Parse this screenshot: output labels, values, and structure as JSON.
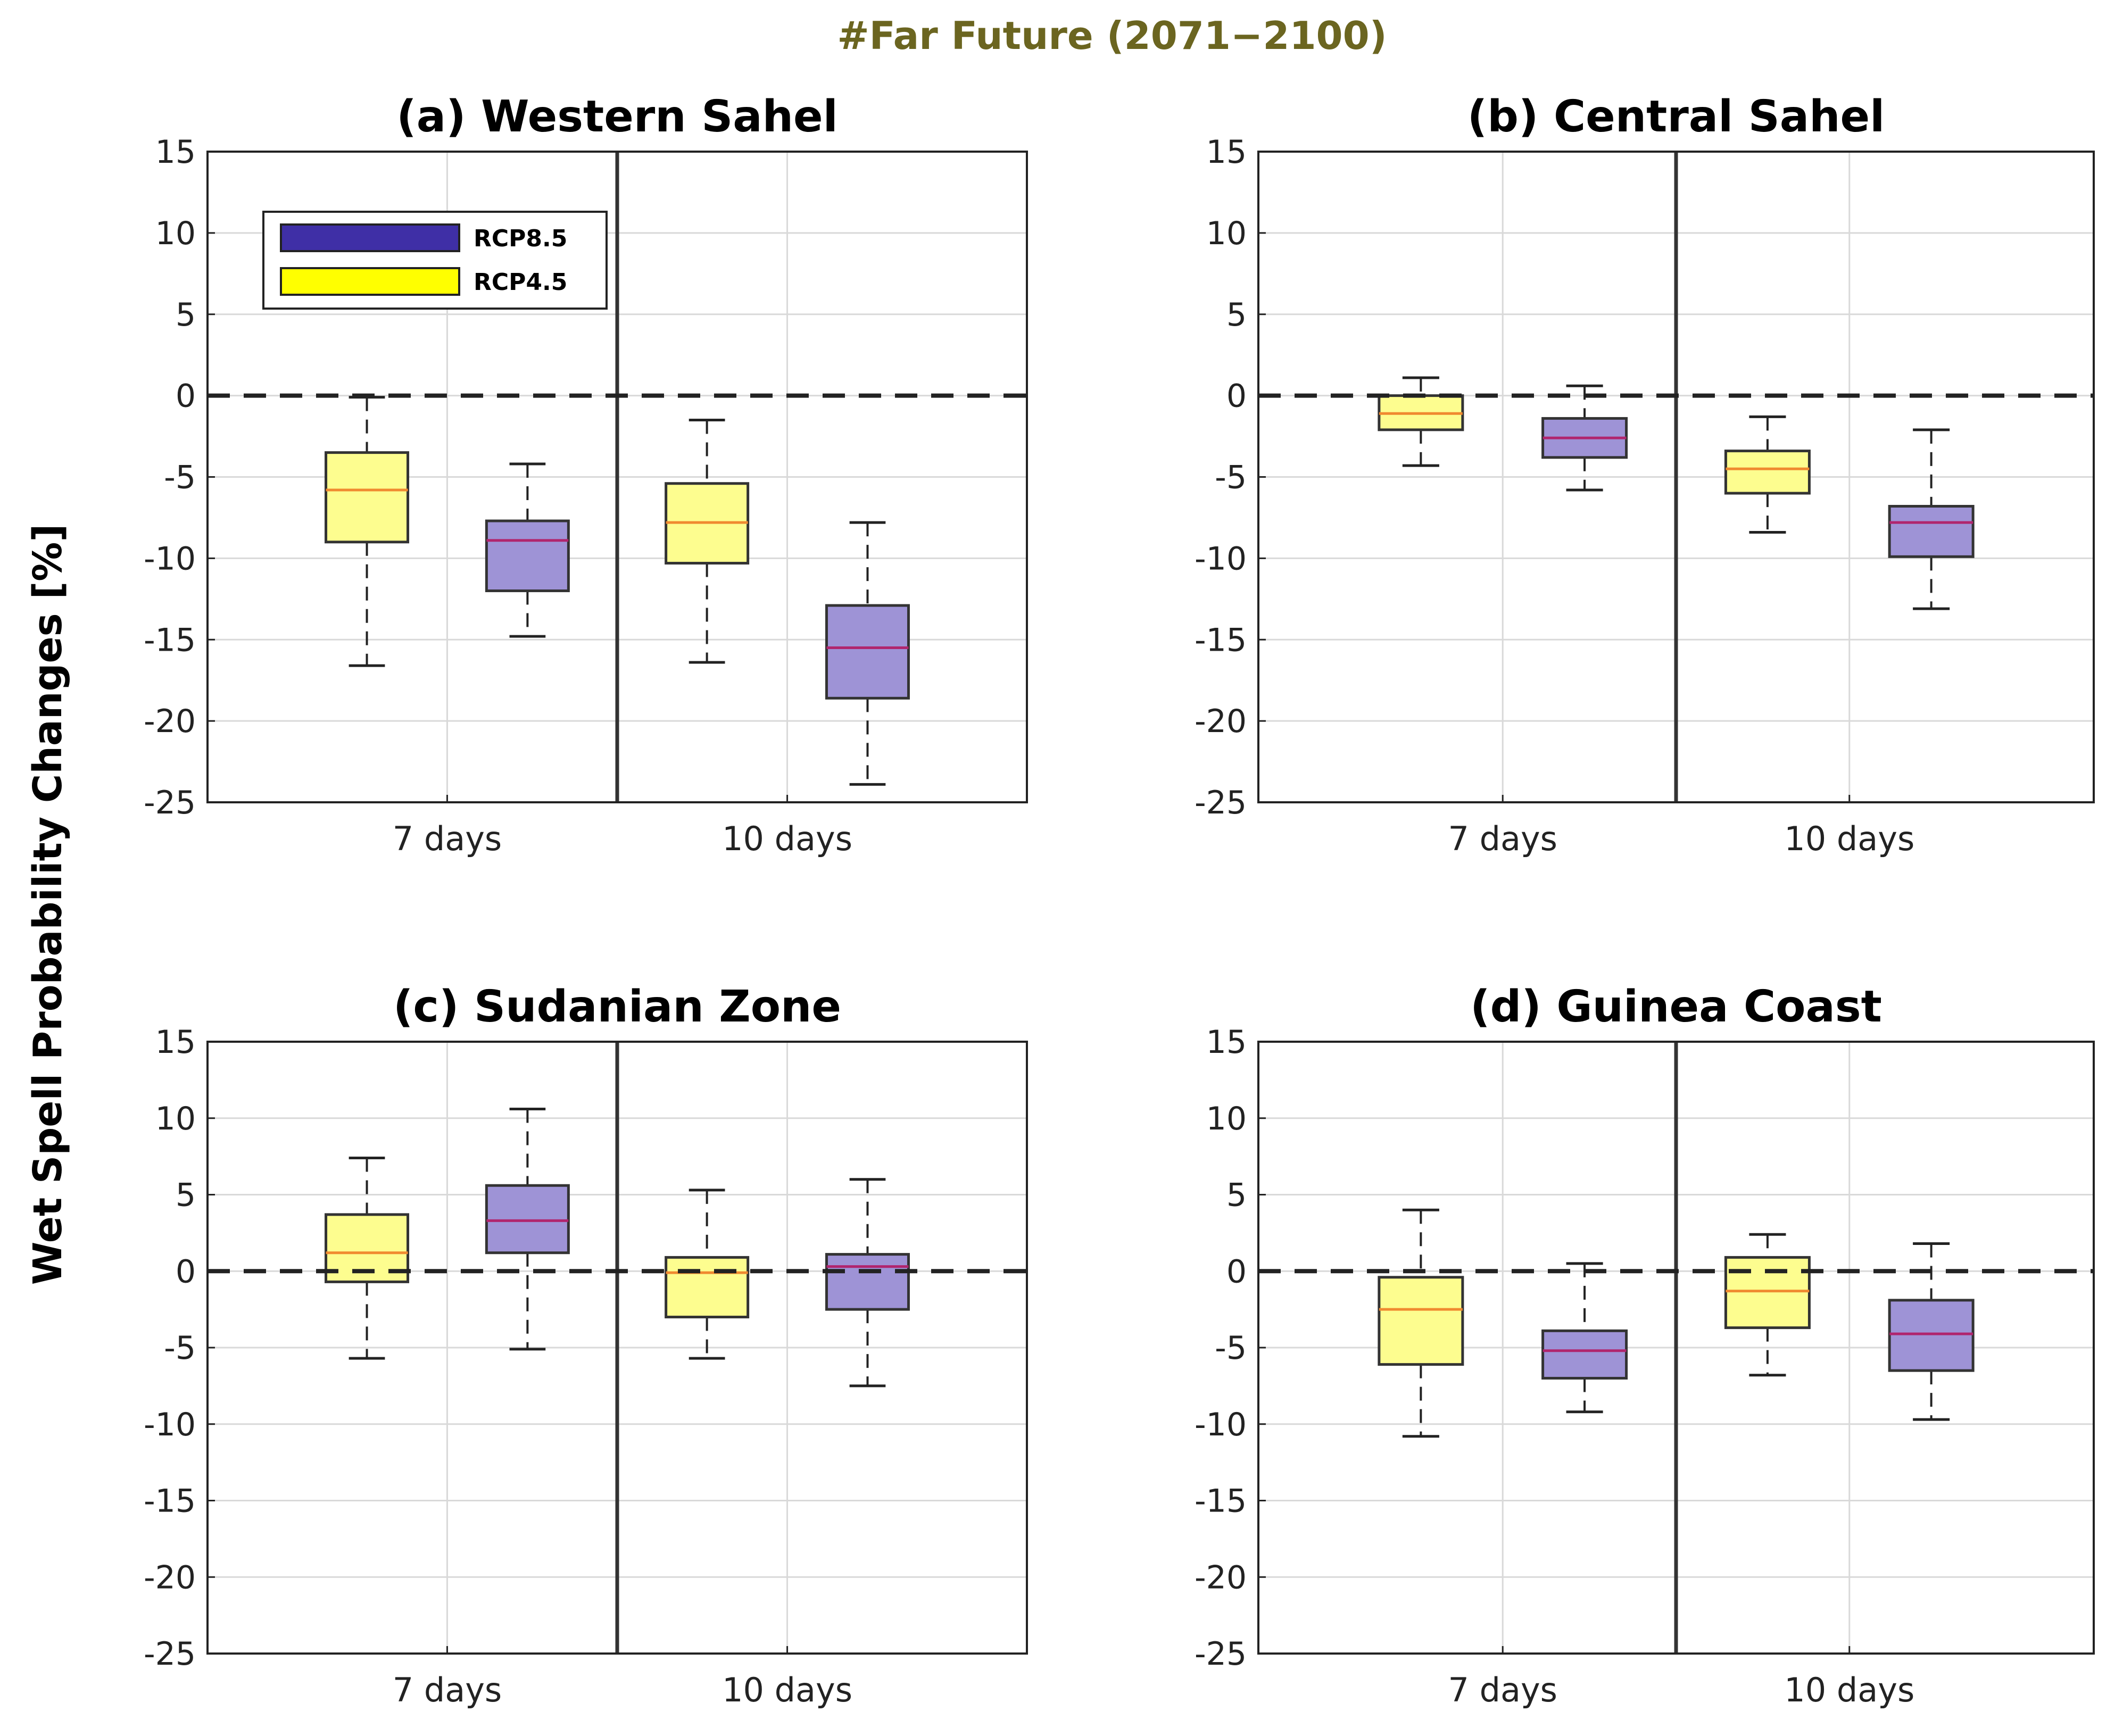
{
  "figure": {
    "title": "#Far Future (2071−2100)",
    "ylabel": "Wet Spell Probability Changes [%]"
  },
  "legend": [
    {
      "label": "RCP8.5",
      "color": "#3f2fa6"
    },
    {
      "label": "RCP4.5",
      "color": "#ffff00"
    }
  ],
  "styles": {
    "rcp45_fill": "#fdfd8f",
    "rcp85_fill": "#9e93d6",
    "rcp45_median": "#f08a30",
    "rcp85_median": "#b0256e",
    "grid": "#d9d9d9"
  },
  "chart_data": [
    {
      "type": "box",
      "title": "(a)  Western Sahel",
      "categories": [
        "7 days",
        "10 days"
      ],
      "ylim": [
        -25,
        15
      ],
      "yticks": [
        15,
        10,
        5,
        0,
        -5,
        -10,
        -15,
        -20,
        -25
      ],
      "ytick_labels": [
        "15",
        "10",
        "5",
        "0",
        "-5",
        "-10",
        "-15",
        "-20",
        "-25"
      ],
      "reference_line": 0,
      "series": [
        {
          "name": "RCP4.5",
          "boxes": [
            {
              "whisker_low": -16.6,
              "q1": -9.0,
              "median": -5.8,
              "q3": -3.5,
              "whisker_high": -0.1
            },
            {
              "whisker_low": -16.4,
              "q1": -10.3,
              "median": -7.8,
              "q3": -5.4,
              "whisker_high": -1.5
            }
          ]
        },
        {
          "name": "RCP8.5",
          "boxes": [
            {
              "whisker_low": -14.8,
              "q1": -12.0,
              "median": -8.9,
              "q3": -7.7,
              "whisker_high": -4.2
            },
            {
              "whisker_low": -23.9,
              "q1": -18.6,
              "median": -15.5,
              "q3": -12.9,
              "whisker_high": -7.8
            }
          ]
        }
      ]
    },
    {
      "type": "box",
      "title": "(b)  Central Sahel",
      "categories": [
        "7 days",
        "10 days"
      ],
      "ylim": [
        -25,
        15
      ],
      "yticks": [
        15,
        10,
        5,
        0,
        -5,
        -10,
        -15,
        -20,
        -25
      ],
      "ytick_labels": [
        "15",
        "10",
        "5",
        "0",
        "-5",
        "-10",
        "-15",
        "-20",
        "-25"
      ],
      "reference_line": 0,
      "series": [
        {
          "name": "RCP4.5",
          "boxes": [
            {
              "whisker_low": -4.3,
              "q1": -2.1,
              "median": -1.1,
              "q3": 0.0,
              "whisker_high": 1.1
            },
            {
              "whisker_low": -8.4,
              "q1": -6.0,
              "median": -4.5,
              "q3": -3.4,
              "whisker_high": -1.3
            }
          ]
        },
        {
          "name": "RCP8.5",
          "boxes": [
            {
              "whisker_low": -5.8,
              "q1": -3.8,
              "median": -2.6,
              "q3": -1.4,
              "whisker_high": 0.6
            },
            {
              "whisker_low": -13.1,
              "q1": -9.9,
              "median": -7.8,
              "q3": -6.8,
              "whisker_high": -2.1
            }
          ]
        }
      ]
    },
    {
      "type": "box",
      "title": "(c)  Sudanian Zone",
      "categories": [
        "7 days",
        "10 days"
      ],
      "ylim": [
        -25,
        15
      ],
      "yticks": [
        15,
        10,
        5,
        0,
        -5,
        -10,
        -15,
        -20,
        -25
      ],
      "ytick_labels": [
        "15",
        "10",
        "5",
        "0",
        "-5",
        "-10",
        "-15",
        "-20",
        "-25"
      ],
      "reference_line": 0,
      "series": [
        {
          "name": "RCP4.5",
          "boxes": [
            {
              "whisker_low": -5.7,
              "q1": -0.7,
              "median": 1.2,
              "q3": 3.7,
              "whisker_high": 7.4
            },
            {
              "whisker_low": -5.7,
              "q1": -3.0,
              "median": -0.1,
              "q3": 0.9,
              "whisker_high": 5.3
            }
          ]
        },
        {
          "name": "RCP8.5",
          "boxes": [
            {
              "whisker_low": -5.1,
              "q1": 1.2,
              "median": 3.3,
              "q3": 5.6,
              "whisker_high": 10.6
            },
            {
              "whisker_low": -7.5,
              "q1": -2.5,
              "median": 0.3,
              "q3": 1.1,
              "whisker_high": 6.0
            }
          ]
        }
      ]
    },
    {
      "type": "box",
      "title": "(d)  Guinea Coast",
      "categories": [
        "7 days",
        "10 days"
      ],
      "ylim": [
        -25,
        15
      ],
      "yticks": [
        15,
        10,
        5,
        0,
        -5,
        -10,
        -15,
        -20,
        -25
      ],
      "ytick_labels": [
        "15",
        "10",
        "5",
        "0",
        "-5",
        "-10",
        "-15",
        "-20",
        "-25"
      ],
      "reference_line": 0,
      "series": [
        {
          "name": "RCP4.5",
          "boxes": [
            {
              "whisker_low": -10.8,
              "q1": -6.1,
              "median": -2.5,
              "q3": -0.4,
              "whisker_high": 4.0
            },
            {
              "whisker_low": -6.8,
              "q1": -3.7,
              "median": -1.3,
              "q3": 0.9,
              "whisker_high": 2.4
            }
          ]
        },
        {
          "name": "RCP8.5",
          "boxes": [
            {
              "whisker_low": -9.2,
              "q1": -7.0,
              "median": -5.2,
              "q3": -3.9,
              "whisker_high": 0.5
            },
            {
              "whisker_low": -9.7,
              "q1": -6.5,
              "median": -4.1,
              "q3": -1.9,
              "whisker_high": 1.8
            }
          ]
        }
      ]
    }
  ]
}
